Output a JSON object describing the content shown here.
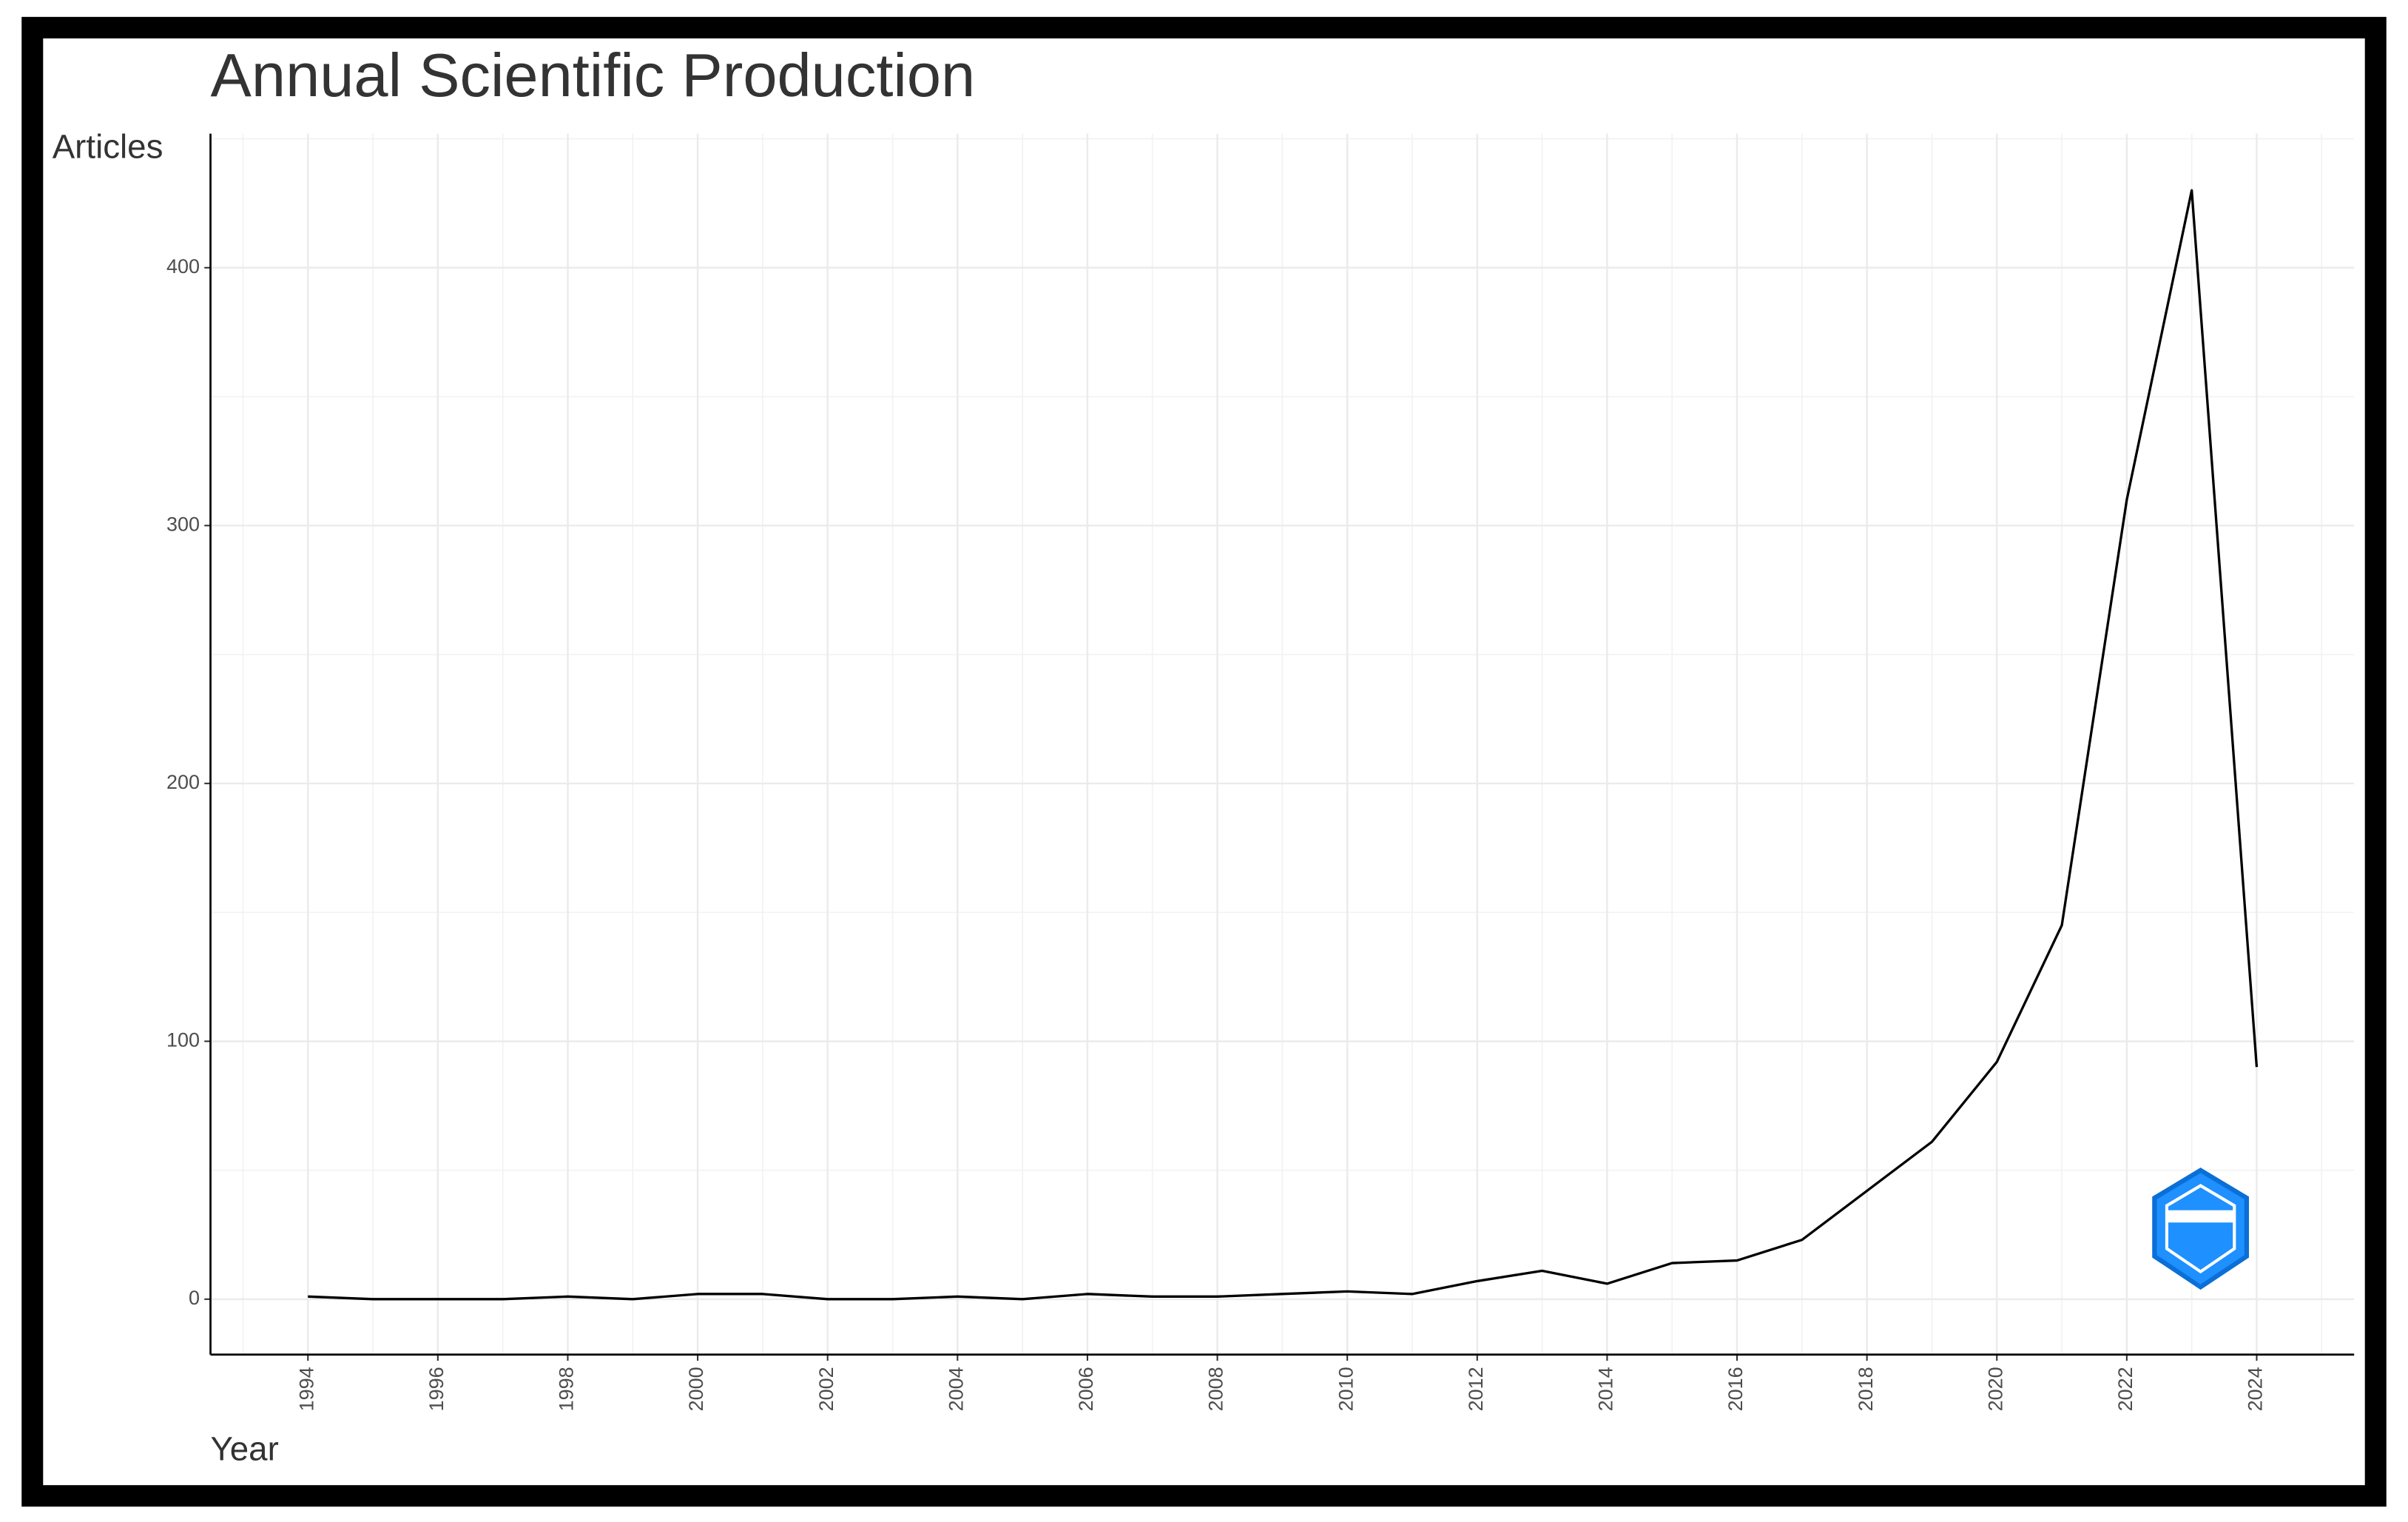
{
  "chart_data": {
    "type": "line",
    "title": "Annual Scientific Production",
    "ylabel": "Articles",
    "xlabel": "Year",
    "x": [
      1994,
      1995,
      1996,
      1997,
      1998,
      1999,
      2000,
      2001,
      2002,
      2003,
      2004,
      2005,
      2006,
      2007,
      2008,
      2009,
      2010,
      2011,
      2012,
      2013,
      2014,
      2015,
      2016,
      2017,
      2018,
      2019,
      2020,
      2021,
      2022,
      2023,
      2024
    ],
    "values": [
      1,
      0,
      0,
      0,
      1,
      0,
      2,
      2,
      0,
      0,
      1,
      0,
      2,
      1,
      1,
      2,
      3,
      2,
      7,
      11,
      6,
      14,
      15,
      23,
      42,
      61,
      92,
      145,
      310,
      430,
      90
    ],
    "color": "#000000",
    "xlim": [
      1992.5,
      2025.5
    ],
    "ylim": [
      -21.5,
      452
    ],
    "xticks": [
      1994,
      1996,
      1998,
      2000,
      2002,
      2004,
      2006,
      2008,
      2010,
      2012,
      2014,
      2016,
      2018,
      2020,
      2022,
      2024
    ],
    "yticks": [
      0,
      100,
      200,
      300,
      400
    ],
    "grid": true
  }
}
